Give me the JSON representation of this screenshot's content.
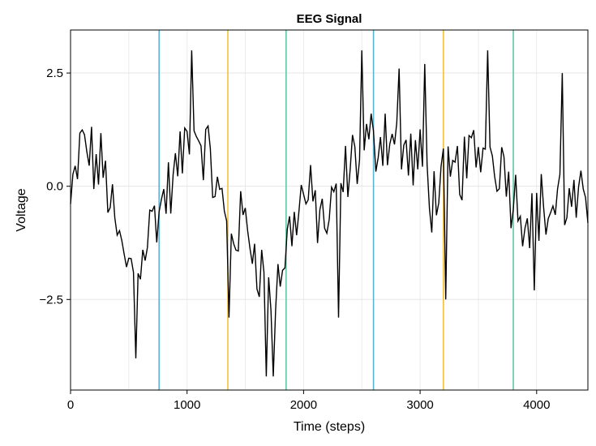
{
  "chart_data": {
    "type": "line",
    "title": "EEG Signal",
    "xlabel": "Time (steps)",
    "ylabel": "Voltage",
    "xlim": [
      0,
      4440
    ],
    "ylim": [
      -4.5,
      3.45
    ],
    "xticks": [
      0,
      1000,
      2000,
      3000,
      4000
    ],
    "xtick_labels": [
      "0",
      "1000",
      "2000",
      "3000",
      "4000"
    ],
    "yticks": [
      -2.5,
      0.0,
      2.5
    ],
    "ytick_labels": [
      "−2.5",
      "0.0",
      "2.5"
    ],
    "grid": true,
    "legend": "none",
    "event_markers": [
      {
        "x": 760,
        "color": "#5ab4d6"
      },
      {
        "x": 1350,
        "color": "#f0c040"
      },
      {
        "x": 1850,
        "color": "#5fc7a8"
      },
      {
        "x": 2600,
        "color": "#5ab4d6"
      },
      {
        "x": 3200,
        "color": "#f0c040"
      },
      {
        "x": 3800,
        "color": "#5fc7a8"
      }
    ],
    "series": [
      {
        "line_color": "#000000",
        "sample_step": 20,
        "envelope": {
          "x": [
            0,
            100,
            200,
            300,
            400,
            500,
            600,
            700,
            800,
            900,
            1000,
            1100,
            1200,
            1300,
            1400,
            1500,
            1600,
            1700,
            1800,
            1900,
            2000,
            2100,
            2200,
            2300,
            2400,
            2500,
            2600,
            2700,
            2800,
            2900,
            3000,
            3100,
            3200,
            3300,
            3400,
            3500,
            3600,
            3700,
            3800,
            3900,
            4000,
            4100,
            4200,
            4300,
            4440
          ],
          "y": [
            -0.5,
            1.0,
            0.5,
            0.3,
            -1.2,
            -1.8,
            -1.5,
            -0.8,
            -0.3,
            0.2,
            1.0,
            1.2,
            0.5,
            -0.5,
            -1.0,
            -0.8,
            -1.5,
            -2.5,
            -2.0,
            -0.8,
            -0.2,
            -0.5,
            -0.8,
            -0.3,
            0.5,
            0.8,
            1.0,
            1.2,
            1.0,
            0.6,
            0.5,
            -0.2,
            0.0,
            0.3,
            0.5,
            0.8,
            0.7,
            0.6,
            -0.2,
            -0.6,
            -0.4,
            -0.6,
            -0.3,
            -0.5,
            -0.5
          ]
        },
        "noise_amplitude": 0.7,
        "spikes": [
          {
            "x": 560,
            "y": -3.8
          },
          {
            "x": 1040,
            "y": 3.0
          },
          {
            "x": 1360,
            "y": -2.9
          },
          {
            "x": 1680,
            "y": -4.2
          },
          {
            "x": 1740,
            "y": -4.2
          },
          {
            "x": 2300,
            "y": -2.9
          },
          {
            "x": 2500,
            "y": 3.0
          },
          {
            "x": 2820,
            "y": 2.6
          },
          {
            "x": 3050,
            "y": 2.7
          },
          {
            "x": 3230,
            "y": -2.5
          },
          {
            "x": 3590,
            "y": 3.0
          },
          {
            "x": 3980,
            "y": -2.3
          },
          {
            "x": 4220,
            "y": 2.5
          }
        ]
      }
    ]
  }
}
